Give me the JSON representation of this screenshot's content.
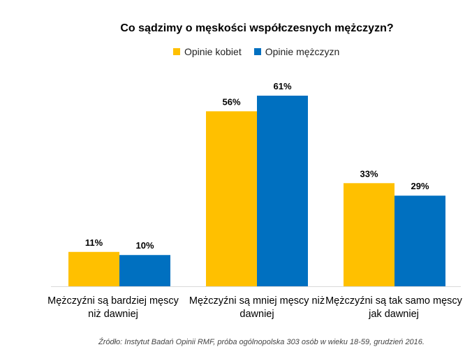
{
  "chart_data": {
    "type": "bar",
    "title": "Co sądzimy o męskości współczesnych mężczyzn?",
    "categories": [
      "Mężczyźni są bardziej męscy niż dawniej",
      "Mężczyźni są mniej męscy niż dawniej",
      "Mężczyźni są tak samo męscy jak dawniej"
    ],
    "series": [
      {
        "name": "Opinie kobiet",
        "values": [
          11,
          56,
          33
        ],
        "labels": [
          "11%",
          "56%",
          "33%"
        ],
        "color": "#FFC000"
      },
      {
        "name": "Opinie mężczyzn",
        "values": [
          10,
          61,
          29
        ],
        "labels": [
          "10%",
          "61%",
          "29%"
        ],
        "color": "#0070C0"
      }
    ],
    "ylim": [
      0,
      61
    ],
    "legend": "top",
    "grid": false,
    "source": "Źródło: Instytut Badań Opinii RMF, próba ogólnopolska 303 osób w wieku 18-59, grudzień 2016."
  }
}
